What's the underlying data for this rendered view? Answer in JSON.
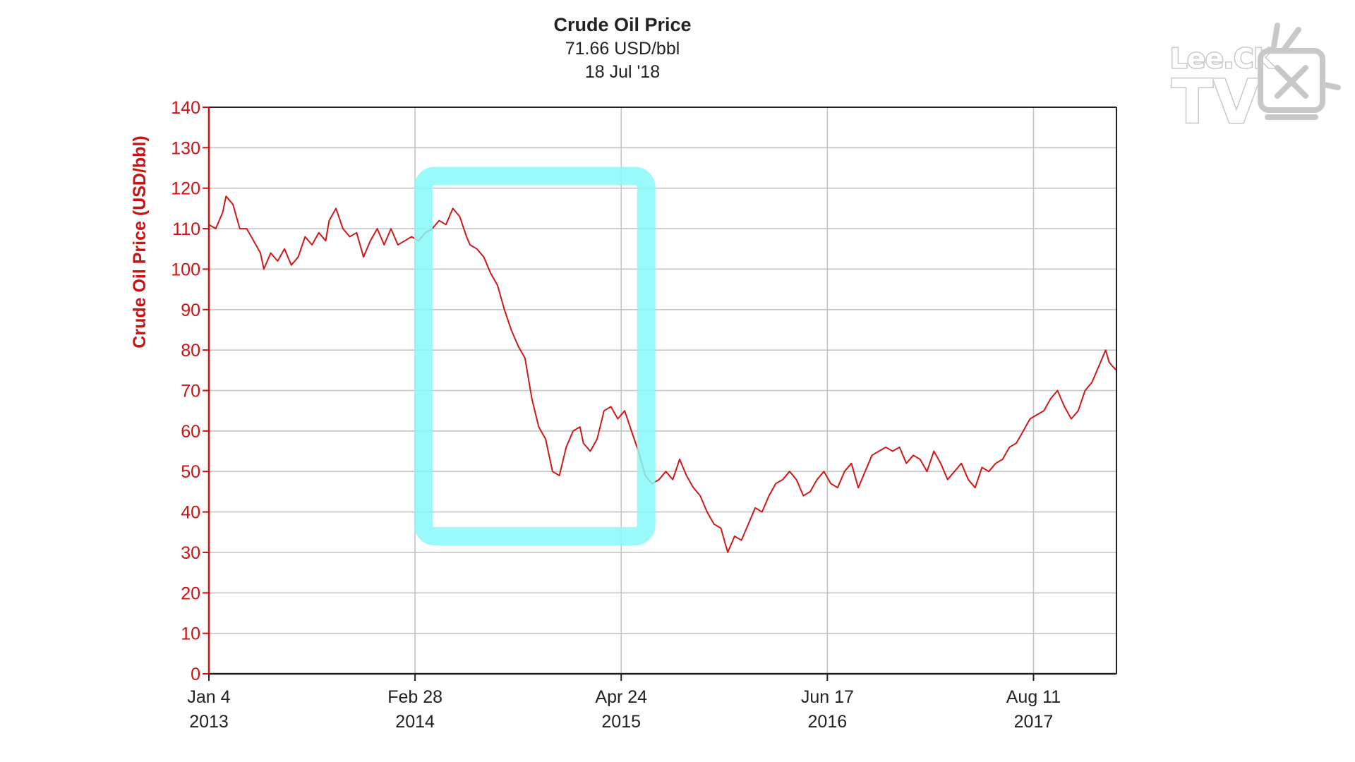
{
  "chart_data": {
    "type": "line",
    "title": "Crude Oil Price",
    "subtitle_value": "71.66 USD/bbl",
    "subtitle_date": "18 Jul '18",
    "ylabel": "Crude Oil Price (USD/bbl)",
    "xlabel": "",
    "ylim": [
      0,
      140
    ],
    "yticks": [
      0,
      10,
      20,
      30,
      40,
      50,
      60,
      70,
      80,
      90,
      100,
      110,
      120,
      130,
      140
    ],
    "xlim": [
      "2013-01-04",
      "2018-01-27"
    ],
    "xticks": [
      {
        "date": "2013-01-04",
        "line1": "Jan 4",
        "line2": "2013"
      },
      {
        "date": "2014-02-28",
        "line1": "Feb 28",
        "line2": "2014"
      },
      {
        "date": "2015-04-24",
        "line1": "Apr 24",
        "line2": "2015"
      },
      {
        "date": "2016-06-17",
        "line1": "Jun 17",
        "line2": "2016"
      },
      {
        "date": "2017-08-11",
        "line1": "Aug 11",
        "line2": "2017"
      }
    ],
    "grid": true,
    "line_color": "#d01818",
    "axis_label_color": "#cc1111",
    "highlight": {
      "from": "2014-03-17",
      "to": "2015-06-14",
      "low": 34,
      "high": 123,
      "color": "#88f8f8"
    },
    "series": [
      {
        "name": "",
        "x": [
          "2013-01-04",
          "2013-01-18",
          "2013-02-01",
          "2013-02-08",
          "2013-02-22",
          "2013-03-08",
          "2013-03-22",
          "2013-04-05",
          "2013-04-19",
          "2013-04-26",
          "2013-05-10",
          "2013-05-24",
          "2013-06-07",
          "2013-06-21",
          "2013-07-05",
          "2013-07-19",
          "2013-08-02",
          "2013-08-16",
          "2013-08-30",
          "2013-09-06",
          "2013-09-20",
          "2013-10-04",
          "2013-10-18",
          "2013-11-01",
          "2013-11-15",
          "2013-11-29",
          "2013-12-13",
          "2013-12-27",
          "2014-01-10",
          "2014-01-24",
          "2014-02-07",
          "2014-02-21",
          "2014-03-07",
          "2014-03-21",
          "2014-04-04",
          "2014-04-18",
          "2014-05-02",
          "2014-05-16",
          "2014-05-30",
          "2014-06-13",
          "2014-06-20",
          "2014-07-04",
          "2014-07-18",
          "2014-08-01",
          "2014-08-15",
          "2014-08-29",
          "2014-09-12",
          "2014-09-26",
          "2014-10-10",
          "2014-10-24",
          "2014-11-07",
          "2014-11-21",
          "2014-12-05",
          "2014-12-19",
          "2015-01-02",
          "2015-01-16",
          "2015-01-30",
          "2015-02-06",
          "2015-02-20",
          "2015-03-06",
          "2015-03-20",
          "2015-04-03",
          "2015-04-17",
          "2015-05-01",
          "2015-05-15",
          "2015-05-29",
          "2015-06-12",
          "2015-06-26",
          "2015-07-10",
          "2015-07-24",
          "2015-08-07",
          "2015-08-21",
          "2015-09-04",
          "2015-09-18",
          "2015-10-02",
          "2015-10-16",
          "2015-10-30",
          "2015-11-13",
          "2015-11-27",
          "2015-12-11",
          "2015-12-25",
          "2016-01-08",
          "2016-01-22",
          "2016-02-05",
          "2016-02-19",
          "2016-03-04",
          "2016-03-18",
          "2016-04-01",
          "2016-04-15",
          "2016-04-29",
          "2016-05-13",
          "2016-05-27",
          "2016-06-10",
          "2016-06-24",
          "2016-07-08",
          "2016-07-22",
          "2016-08-05",
          "2016-08-19",
          "2016-09-02",
          "2016-09-16",
          "2016-09-30",
          "2016-10-14",
          "2016-10-28",
          "2016-11-11",
          "2016-11-25",
          "2016-12-09",
          "2016-12-23",
          "2017-01-06",
          "2017-01-20",
          "2017-02-03",
          "2017-02-17",
          "2017-03-03",
          "2017-03-17",
          "2017-03-31",
          "2017-04-14",
          "2017-04-28",
          "2017-05-12",
          "2017-05-26",
          "2017-06-09",
          "2017-06-23",
          "2017-07-07",
          "2017-07-21",
          "2017-08-04",
          "2017-08-18",
          "2017-09-01",
          "2017-09-15",
          "2017-09-29",
          "2017-10-13",
          "2017-10-27",
          "2017-11-10",
          "2017-11-24",
          "2017-12-08",
          "2017-12-22",
          "2018-01-05",
          "2018-01-12",
          "2018-01-19",
          "2018-01-27"
        ],
        "values": [
          111,
          110,
          114,
          118,
          116,
          110,
          110,
          107,
          104,
          100,
          104,
          102,
          105,
          101,
          103,
          108,
          106,
          109,
          107,
          112,
          115,
          110,
          108,
          109,
          103,
          107,
          110,
          106,
          110,
          106,
          107,
          108,
          107,
          109,
          110,
          112,
          111,
          115,
          113,
          108,
          106,
          105,
          103,
          99,
          96,
          90,
          85,
          81,
          78,
          68,
          61,
          58,
          50,
          49,
          56,
          60,
          61,
          57,
          55,
          58,
          65,
          66,
          63,
          65,
          60,
          55,
          49,
          47,
          48,
          50,
          48,
          53,
          49,
          46,
          44,
          40,
          37,
          36,
          30,
          34,
          33,
          37,
          41,
          40,
          44,
          47,
          48,
          50,
          48,
          44,
          45,
          48,
          50,
          47,
          46,
          50,
          52,
          46,
          50,
          54,
          55,
          56,
          55,
          56,
          52,
          54,
          53,
          50,
          55,
          52,
          48,
          50,
          52,
          48,
          46,
          51,
          50,
          52,
          53,
          56,
          57,
          60,
          63,
          64,
          65,
          68,
          70,
          66,
          63,
          65,
          70,
          72,
          76,
          80,
          77,
          76,
          75
        ]
      }
    ]
  },
  "logo": {
    "line1": "Lee.CK",
    "line2": "TV"
  }
}
